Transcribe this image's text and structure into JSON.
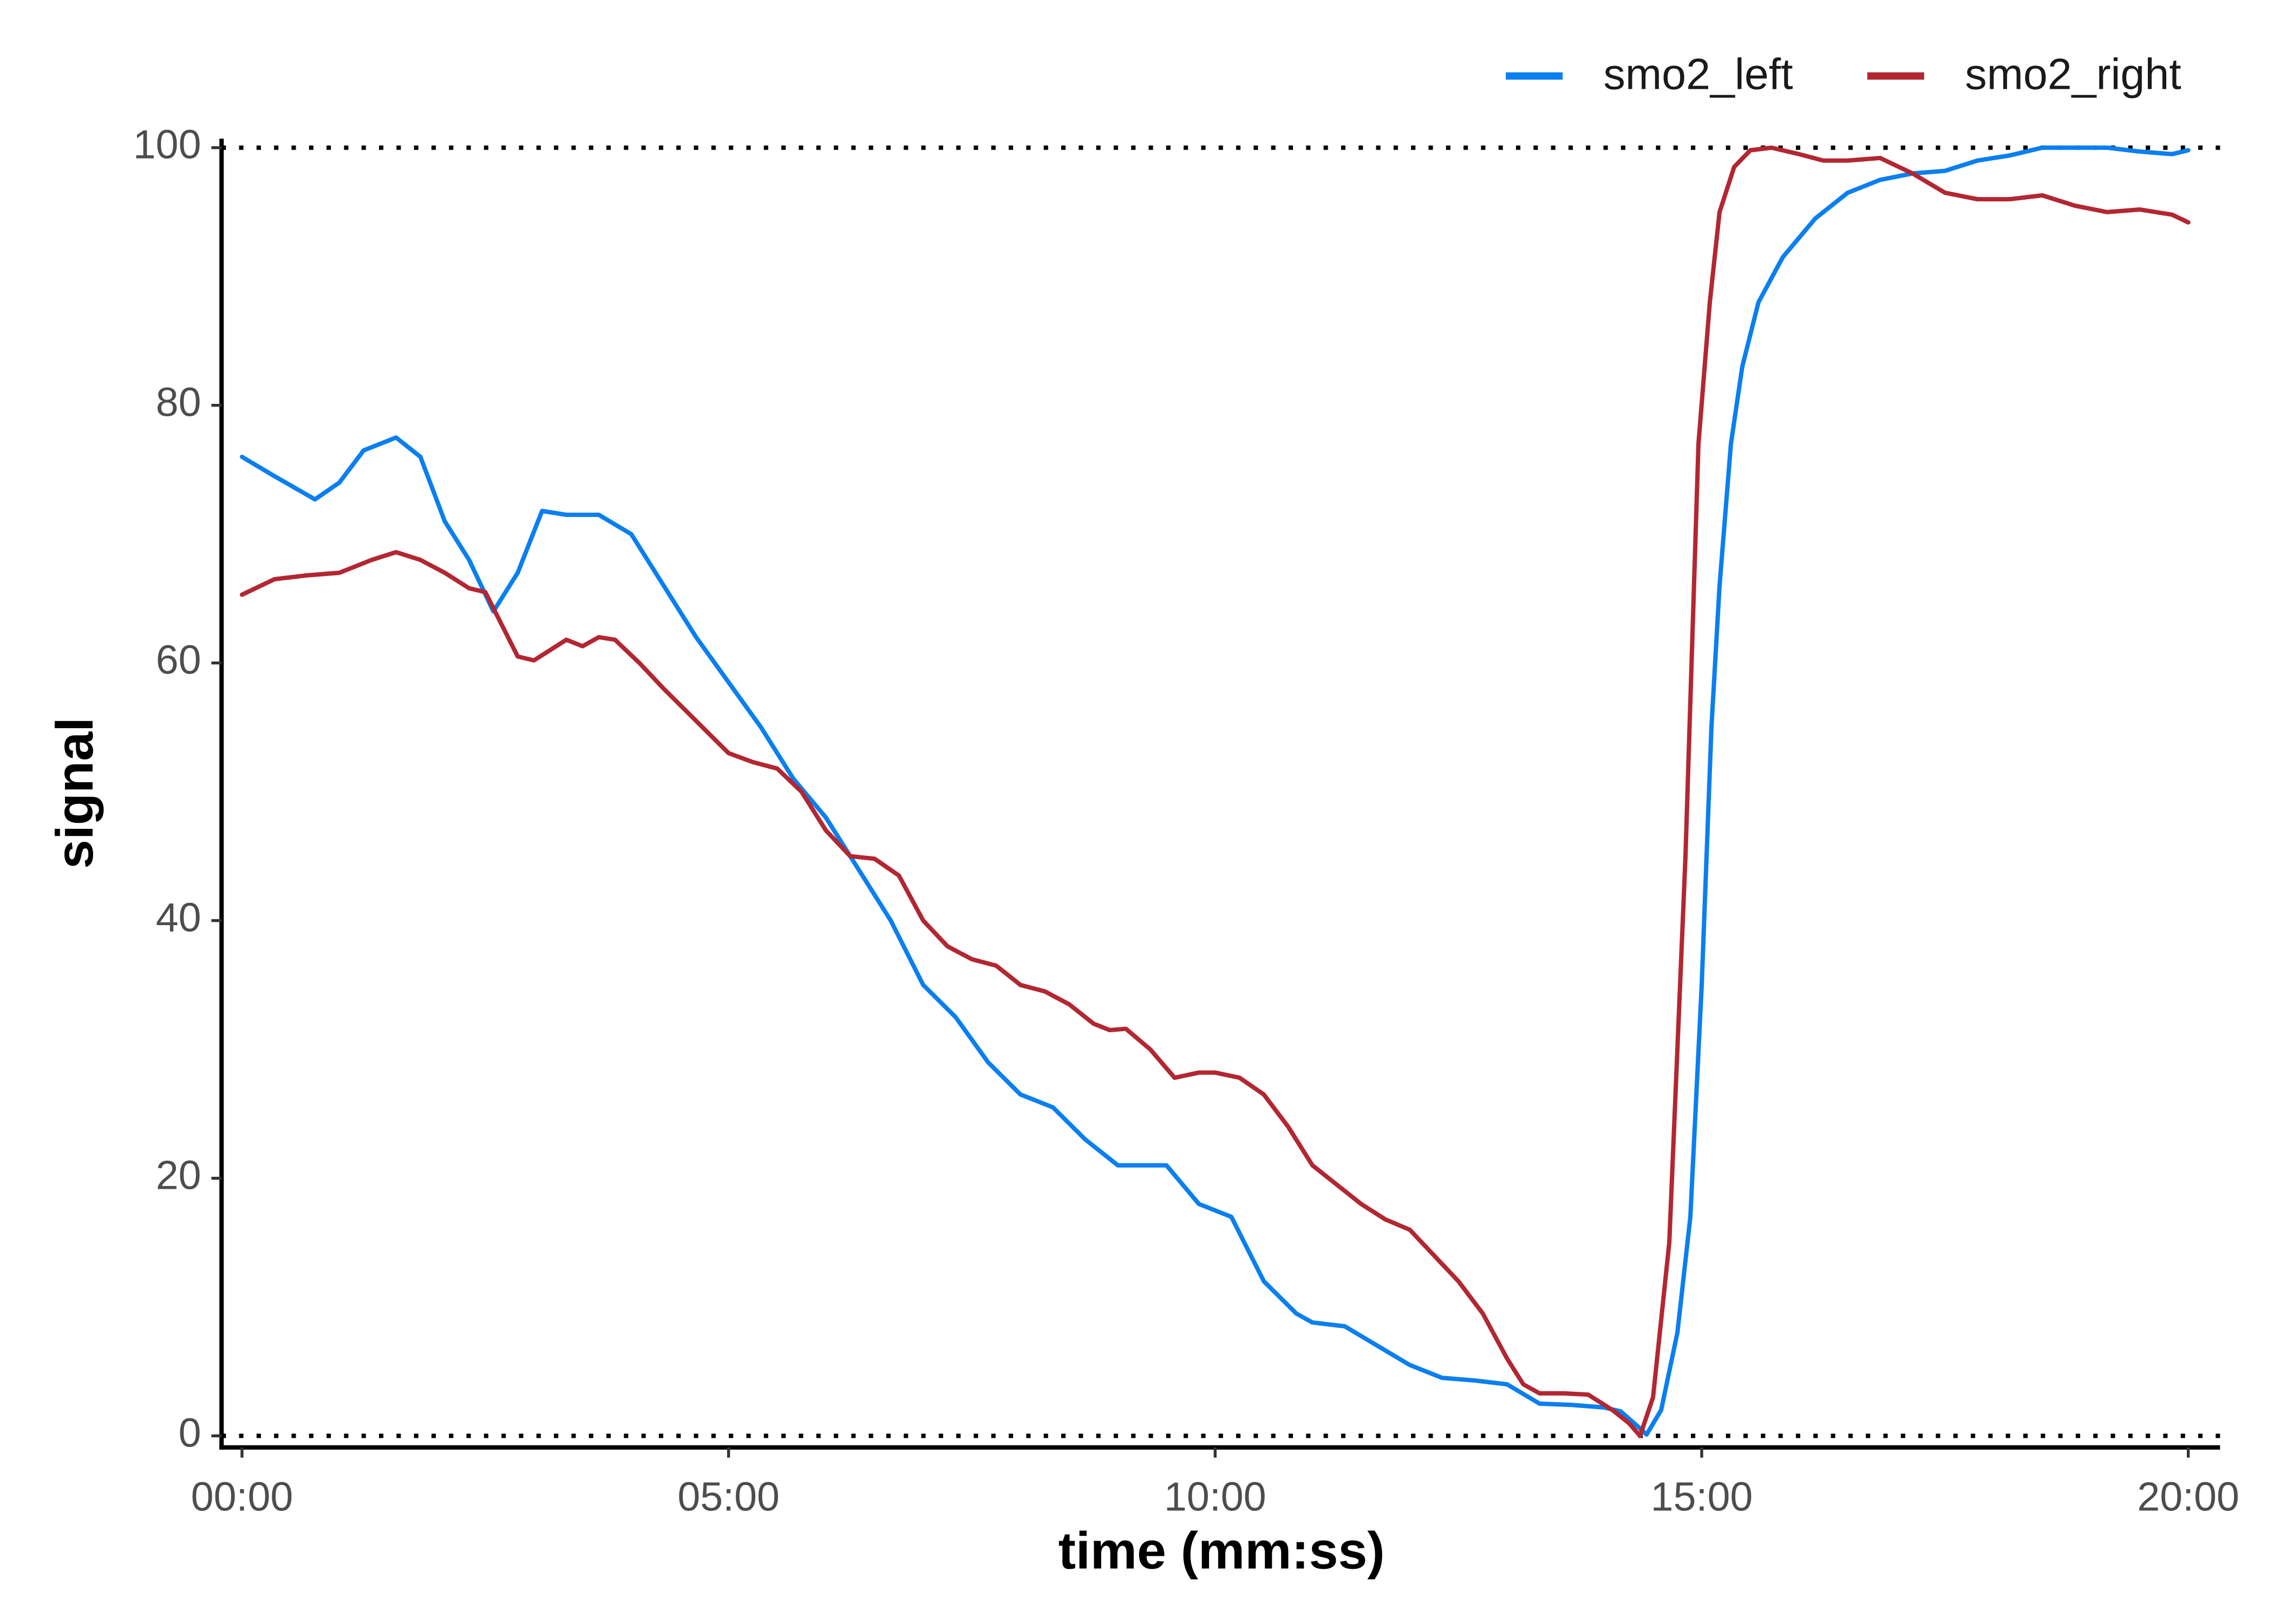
{
  "chart_data": {
    "type": "line",
    "x_label": "time (mm:ss)",
    "y_label": "signal",
    "xlim": [
      -12.6,
      1219.6
    ],
    "ylim": [
      -0.9,
      100.7
    ],
    "xticks": [
      {
        "value": 0,
        "label": "00:00"
      },
      {
        "value": 300,
        "label": "05:00"
      },
      {
        "value": 600,
        "label": "10:00"
      },
      {
        "value": 900,
        "label": "15:00"
      },
      {
        "value": 1200,
        "label": "20:00"
      }
    ],
    "yticks": [
      0,
      20,
      40,
      60,
      80,
      100
    ],
    "reference_lines": [
      0,
      100
    ],
    "legend": "top-right",
    "series": [
      {
        "name": "smo2_left",
        "color": "#0a7ff0",
        "x": [
          0,
          20,
          45,
          60,
          75,
          95,
          110,
          125,
          140,
          155,
          170,
          185,
          200,
          220,
          240,
          260,
          280,
          300,
          320,
          340,
          360,
          380,
          400,
          420,
          440,
          460,
          480,
          500,
          520,
          540,
          560,
          570,
          590,
          600,
          610,
          630,
          650,
          660,
          680,
          700,
          720,
          740,
          760,
          780,
          800,
          820,
          840,
          850,
          860,
          866,
          875,
          885,
          893,
          900,
          906,
          911,
          918,
          925,
          935,
          950,
          970,
          990,
          1010,
          1030,
          1050,
          1070,
          1090,
          1110,
          1130,
          1150,
          1170,
          1190,
          1200
        ],
        "values": [
          76,
          74.5,
          72.7,
          74,
          76.5,
          77.5,
          76,
          71,
          68,
          64,
          67,
          71.8,
          71.5,
          71.5,
          70,
          66,
          62,
          58.5,
          55,
          51,
          48,
          44,
          40,
          35,
          32.5,
          29,
          26.5,
          25.5,
          23,
          21,
          21,
          21,
          18,
          17.5,
          17,
          12,
          9.5,
          8.8,
          8.5,
          7,
          5.5,
          4.5,
          4.3,
          4,
          2.5,
          2.4,
          2.2,
          1.9,
          0.8,
          0.1,
          2,
          8,
          17,
          35,
          55,
          66,
          77,
          83,
          88,
          91.5,
          94.5,
          96.5,
          97.5,
          98,
          98.2,
          99,
          99.4,
          100,
          100,
          100,
          99.7,
          99.5,
          99.8
        ]
      },
      {
        "name": "smo2_right",
        "color": "#b22732",
        "x": [
          0,
          20,
          40,
          60,
          80,
          95,
          110,
          125,
          140,
          150,
          160,
          170,
          180,
          190,
          200,
          210,
          220,
          230,
          245,
          260,
          280,
          300,
          315,
          330,
          345,
          360,
          375,
          390,
          405,
          420,
          435,
          450,
          465,
          480,
          495,
          510,
          525,
          535,
          545,
          560,
          575,
          590,
          600,
          615,
          630,
          645,
          660,
          675,
          690,
          705,
          720,
          735,
          750,
          765,
          780,
          790,
          800,
          815,
          830,
          845,
          855,
          862,
          870,
          880,
          890,
          898,
          905,
          911,
          920,
          930,
          943,
          960,
          975,
          990,
          1010,
          1030,
          1050,
          1070,
          1090,
          1110,
          1130,
          1150,
          1170,
          1190,
          1200
        ],
        "values": [
          65.3,
          66.5,
          66.8,
          67,
          68,
          68.6,
          68,
          67,
          65.8,
          65.5,
          63,
          60.5,
          60.2,
          61,
          61.8,
          61.3,
          62,
          61.8,
          60,
          58,
          55.5,
          53,
          52.3,
          51.8,
          50,
          47,
          45,
          44.8,
          43.5,
          40,
          38,
          37,
          36.5,
          35,
          34.5,
          33.5,
          32,
          31.5,
          31.6,
          30,
          27.8,
          28.2,
          28.2,
          27.8,
          26.5,
          24,
          21,
          19.5,
          18,
          16.8,
          16,
          14,
          12,
          9.5,
          6,
          4,
          3.3,
          3.3,
          3.2,
          2,
          1,
          0,
          3,
          15,
          45,
          77,
          88,
          95,
          98.5,
          99.8,
          100,
          99.5,
          99,
          99,
          99.2,
          98,
          96.5,
          96,
          96,
          96.3,
          95.5,
          95,
          95.2,
          94.8,
          94.2
        ]
      }
    ]
  }
}
